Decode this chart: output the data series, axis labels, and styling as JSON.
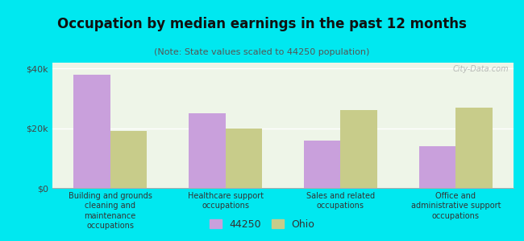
{
  "title": "Occupation by median earnings in the past 12 months",
  "subtitle": "(Note: State values scaled to 44250 population)",
  "categories": [
    "Building and grounds\ncleaning and\nmaintenance\noccupations",
    "Healthcare support\noccupations",
    "Sales and related\noccupations",
    "Office and\nadministrative support\noccupations"
  ],
  "values_44250": [
    38000,
    25000,
    16000,
    14000
  ],
  "values_ohio": [
    19000,
    20000,
    26000,
    27000
  ],
  "color_44250": "#c9a0dc",
  "color_ohio": "#c8cc8a",
  "background_outer": "#00e8f0",
  "background_inner": "#eef5e8",
  "ylim": [
    0,
    42000
  ],
  "yticks": [
    0,
    20000,
    40000
  ],
  "ytick_labels": [
    "$0",
    "$20k",
    "$40k"
  ],
  "legend_label_1": "44250",
  "legend_label_2": "Ohio",
  "watermark": "City-Data.com"
}
